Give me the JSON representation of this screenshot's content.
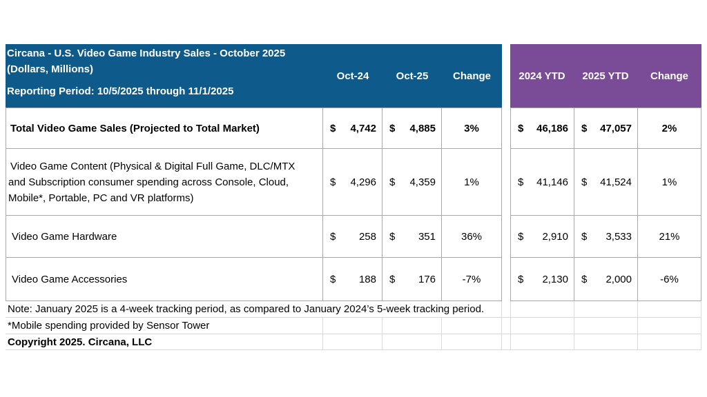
{
  "header": {
    "title": "Circana - U.S. Video Game Industry Sales - October 2025",
    "subtitle": "(Dollars, Millions)",
    "period": "Reporting Period: 10/5/2025 through 11/1/2025",
    "monthly_columns": [
      "Oct-24",
      "Oct-25",
      "Change"
    ],
    "ytd_columns": [
      "2024 YTD",
      "2025 YTD",
      "Change"
    ]
  },
  "currency_symbol": "$",
  "rows": [
    {
      "label": "Total Video Game Sales (Projected to Total Market)",
      "bold": true,
      "oct24": "4,742",
      "oct25": "4,885",
      "change": "3%",
      "ytd24": "46,186",
      "ytd25": "47,057",
      "ytd_change": "2%"
    },
    {
      "label_lines": [
        "Video Game Content (Physical & Digital Full Game, DLC/MTX",
        "and Subscription consumer spending across Console, Cloud,",
        "Mobile*, Portable, PC and VR platforms)"
      ],
      "bold": false,
      "oct24": "4,296",
      "oct25": "4,359",
      "change": "1%",
      "ytd24": "41,146",
      "ytd25": "41,524",
      "ytd_change": "1%"
    },
    {
      "label": "Video Game Hardware",
      "bold": false,
      "oct24": "258",
      "oct25": "351",
      "change": "36%",
      "ytd24": "2,910",
      "ytd25": "3,533",
      "ytd_change": "21%"
    },
    {
      "label": "Video Game Accessories",
      "bold": false,
      "oct24": "188",
      "oct25": "176",
      "change": "-7%",
      "ytd24": "2,130",
      "ytd25": "2,000",
      "ytd_change": "-6%"
    }
  ],
  "notes": {
    "note1": "Note: January 2025 is a 4-week tracking period, as compared to January 2024’s 5-week tracking period.",
    "note2": "*Mobile spending provided by Sensor Tower",
    "copyright": "Copyright 2025. Circana, LLC"
  }
}
